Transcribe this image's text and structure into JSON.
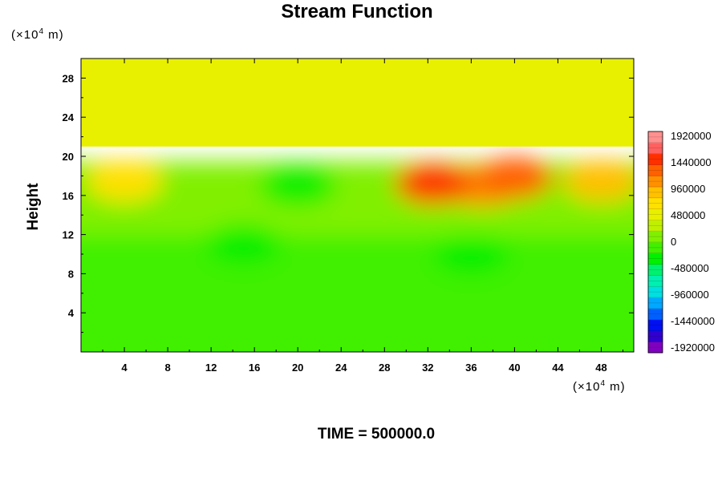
{
  "chart_data": {
    "type": "heatmap",
    "title": "Stream Function",
    "ylabel": "Height",
    "x_unit": {
      "prefix": "(×10",
      "exp": "4",
      "suffix": " m)"
    },
    "y_unit": {
      "prefix": "(×10",
      "exp": "4",
      "suffix": " m)"
    },
    "xlim": [
      0,
      51
    ],
    "ylim": [
      0,
      30
    ],
    "xticks": [
      4,
      8,
      12,
      16,
      20,
      24,
      28,
      32,
      36,
      40,
      44,
      48
    ],
    "yticks": [
      4,
      8,
      12,
      16,
      20,
      24,
      28
    ],
    "colorbar": {
      "ticks": [
        1920000,
        1440000,
        960000,
        480000,
        0,
        -480000,
        -960000,
        -1440000,
        -1920000
      ],
      "range": [
        -2000000,
        2000000
      ],
      "colors_low_to_high": [
        "#8000c0",
        "#3000d0",
        "#0010f0",
        "#0060ff",
        "#00a8ff",
        "#00e0e0",
        "#00f0b0",
        "#00f070",
        "#00f000",
        "#40f000",
        "#80f000",
        "#c0f000",
        "#e8f000",
        "#ffe000",
        "#ffc000",
        "#ff9000",
        "#ff6000",
        "#ff3000",
        "#ff6060",
        "#ff9090"
      ]
    },
    "features": [
      {
        "type": "background",
        "x": [
          0,
          51
        ],
        "y": [
          21,
          30
        ],
        "value": 400000
      },
      {
        "type": "band",
        "x": [
          0,
          51
        ],
        "y": [
          12,
          19.5
        ],
        "value": 150000
      },
      {
        "type": "band",
        "x": [
          0,
          51
        ],
        "y": [
          0,
          12
        ],
        "value": -60000
      },
      {
        "type": "blob",
        "x": 4,
        "y": 17.5,
        "value": 750000
      },
      {
        "type": "blob",
        "x": 20,
        "y": 17,
        "value": -300000
      },
      {
        "type": "blob",
        "x": 15,
        "y": 11,
        "value": -400000
      },
      {
        "type": "blob",
        "x": 36,
        "y": 10,
        "value": -350000
      },
      {
        "type": "blob",
        "x": 37,
        "y": 17,
        "value": 1100000
      },
      {
        "type": "blob",
        "x": 32.5,
        "y": 17.2,
        "value": 1400000
      },
      {
        "type": "blob",
        "x": 40,
        "y": 17.8,
        "value": 1350000
      },
      {
        "type": "blob",
        "x": 48,
        "y": 17.5,
        "value": 900000
      }
    ]
  },
  "time_label": "TIME = 500000.0"
}
